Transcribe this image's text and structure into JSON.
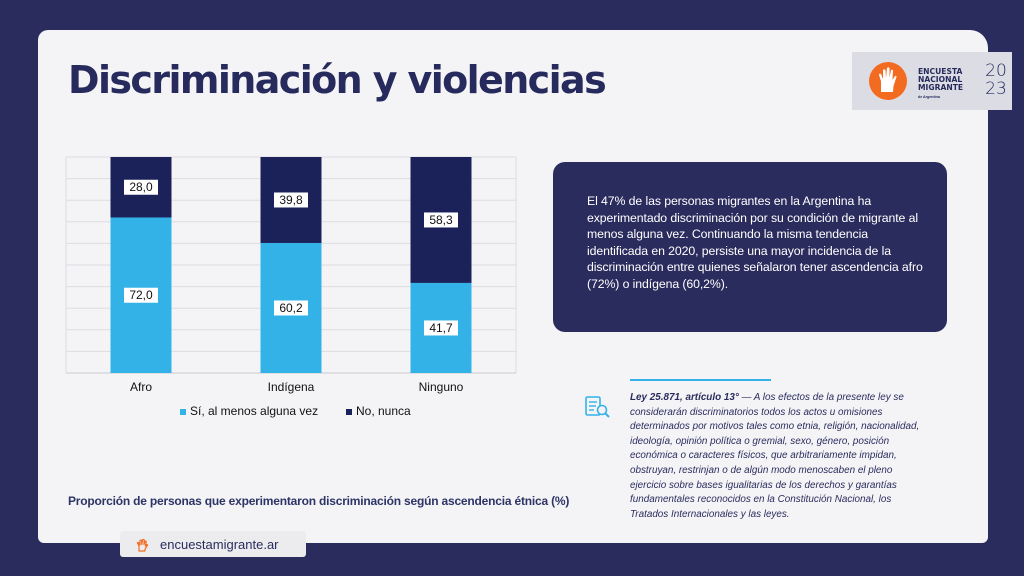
{
  "header": {
    "title": "Discriminación y violencias"
  },
  "brand": {
    "name_line1": "Encuesta",
    "name_line2": "Nacional",
    "name_line3": "Migrante",
    "sub": "de Argentina",
    "year_top": "20",
    "year_bottom": "23",
    "accent_color": "#f26b21"
  },
  "chart_data": {
    "type": "bar",
    "stacked": true,
    "percent_stacked": true,
    "categories": [
      "Afro",
      "Indígena",
      "Ninguno"
    ],
    "series": [
      {
        "name": "Sí, al menos alguna vez",
        "values": [
          72.0,
          60.2,
          41.7
        ],
        "labels": [
          "72,0",
          "60,2",
          "41,7"
        ],
        "color": "#33b2e8"
      },
      {
        "name": "No, nunca",
        "values": [
          28.0,
          39.8,
          58.3
        ],
        "labels": [
          "28,0",
          "39,8",
          "58,3"
        ],
        "color": "#1b2159"
      }
    ],
    "ylim": [
      0,
      100
    ],
    "grid": true,
    "legend_position": "bottom",
    "caption": "Proporción de personas que experimentaron discriminación según ascendencia étnica (%)"
  },
  "info_box": {
    "text": "El 47% de las personas migrantes en la Argentina ha experimentado discriminación por su condición de migrante al menos alguna vez. Continuando la misma tendencia identificada en 2020, persiste una mayor incidencia de la discriminación entre quienes señalaron tener ascendencia afro (72%) o indígena (60,2%)."
  },
  "law": {
    "title": "Ley 25.871, artículo 13°",
    "body": " — A los efectos de la presente ley se considerarán discriminatorios todos los actos u omisiones determinados por motivos tales como etnia, religión, nacionalidad, ideología, opinión política o gremial, sexo, género, posición económica o caracteres físicos, que arbitrariamente impidan, obstruyan, restrinjan o de algún modo menoscaben el pleno ejercicio sobre bases igualitarias de los derechos y garantías fundamentales reconocidos en la Constitución Nacional, los Tratados Internacionales y las leyes.",
    "icon": "document-search-icon"
  },
  "footer": {
    "url": "encuestamigrante.ar",
    "icon": "hand-logo-icon"
  }
}
